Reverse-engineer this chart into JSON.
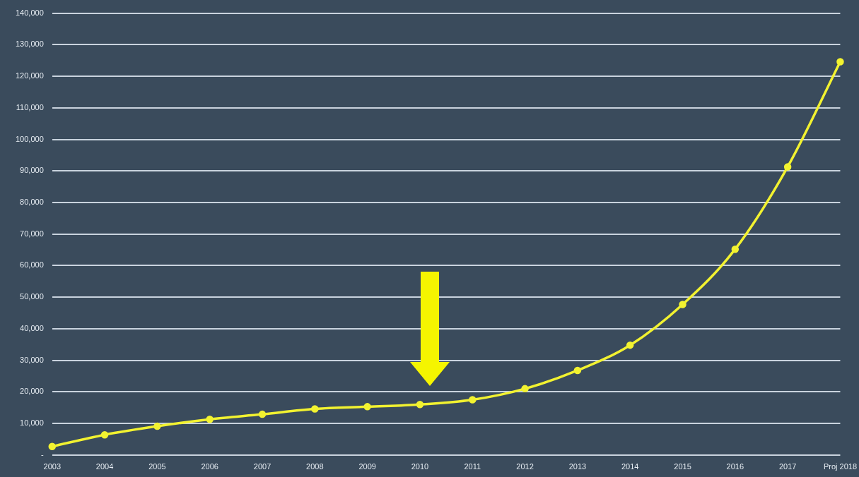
{
  "chart_data": {
    "type": "line",
    "categories": [
      "2003",
      "2004",
      "2005",
      "2006",
      "2007",
      "2008",
      "2009",
      "2010",
      "2011",
      "2012",
      "2013",
      "2014",
      "2015",
      "2016",
      "2017",
      "Proj 2018"
    ],
    "series": [
      {
        "color": "#f2f230",
        "values": [
          2700,
          6400,
          9100,
          11300,
          12900,
          14600,
          15300,
          16000,
          17500,
          21000,
          26800,
          34800,
          47700,
          65200,
          91300,
          124600
        ]
      }
    ],
    "ylim": [
      0,
      140000
    ],
    "yticks": [
      {
        "value": 0,
        "label": "-"
      },
      {
        "value": 10000,
        "label": "10,000"
      },
      {
        "value": 20000,
        "label": "20,000"
      },
      {
        "value": 30000,
        "label": "30,000"
      },
      {
        "value": 40000,
        "label": "40,000"
      },
      {
        "value": 50000,
        "label": "50,000"
      },
      {
        "value": 60000,
        "label": "60,000"
      },
      {
        "value": 70000,
        "label": "70,000"
      },
      {
        "value": 80000,
        "label": "80,000"
      },
      {
        "value": 90000,
        "label": "90,000"
      },
      {
        "value": 100000,
        "label": "100,000"
      },
      {
        "value": 110000,
        "label": "110,000"
      },
      {
        "value": 120000,
        "label": "120,000"
      },
      {
        "value": 130000,
        "label": "130,000"
      },
      {
        "value": 140000,
        "label": "140,000"
      }
    ],
    "grid": "y",
    "legend": false,
    "marker": "circle",
    "line_style": "solid"
  }
}
